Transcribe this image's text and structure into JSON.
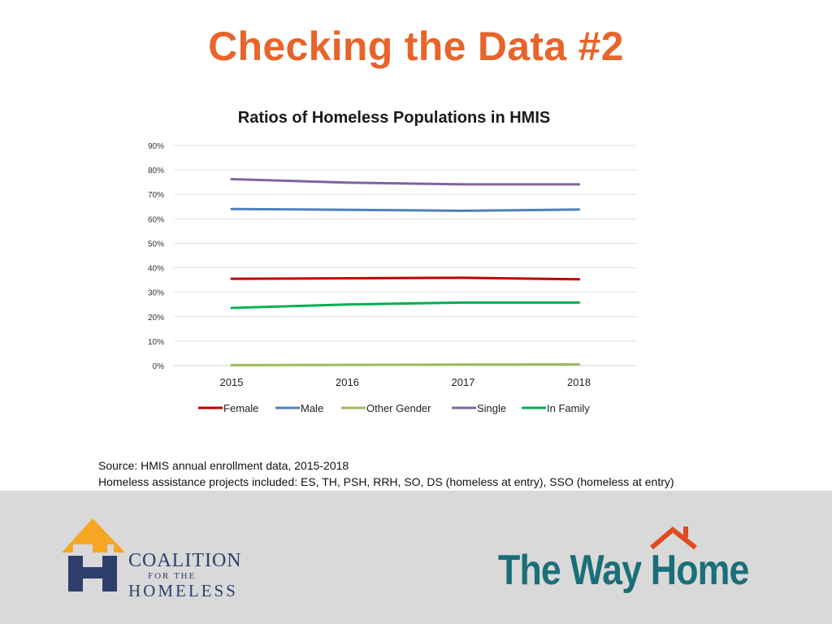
{
  "slide": {
    "title": "Checking the Data #2",
    "source_line1": "Source: HMIS annual enrollment data, 2015-2018",
    "source_line2": "Homeless assistance projects included: ES, TH, PSH, RRH, SO, DS (homeless at entry), SSO (homeless at entry)"
  },
  "logos": {
    "coalition_line1": "COALITION",
    "coalition_line2": "FOR THE",
    "coalition_line3": "HOMELESS",
    "the_way_home": "The Way Home"
  },
  "chart_data": {
    "type": "line",
    "title": "Ratios of Homeless Populations in HMIS",
    "categories": [
      "2015",
      "2016",
      "2017",
      "2018"
    ],
    "ylim": [
      0,
      0.9
    ],
    "yticks": [
      "0%",
      "10%",
      "20%",
      "30%",
      "40%",
      "50%",
      "60%",
      "70%",
      "80%",
      "90%"
    ],
    "grid": true,
    "legend_position": "bottom",
    "series": [
      {
        "name": "Female",
        "color": "#c00000",
        "values": [
          0.355,
          0.357,
          0.359,
          0.353
        ]
      },
      {
        "name": "Male",
        "color": "#4f81bd",
        "values": [
          0.64,
          0.637,
          0.633,
          0.638
        ]
      },
      {
        "name": "Other Gender",
        "color": "#9bbb59",
        "values": [
          0.002,
          0.003,
          0.004,
          0.005
        ]
      },
      {
        "name": "Single",
        "color": "#8064a2",
        "values": [
          0.762,
          0.748,
          0.741,
          0.741
        ]
      },
      {
        "name": "In Family",
        "color": "#00b050",
        "values": [
          0.236,
          0.25,
          0.258,
          0.258
        ]
      }
    ]
  },
  "colors": {
    "title_orange": "#e8642a",
    "navy": "#2e3f6d",
    "teal": "#1a6f79",
    "roof_orange": "#e04a23"
  }
}
